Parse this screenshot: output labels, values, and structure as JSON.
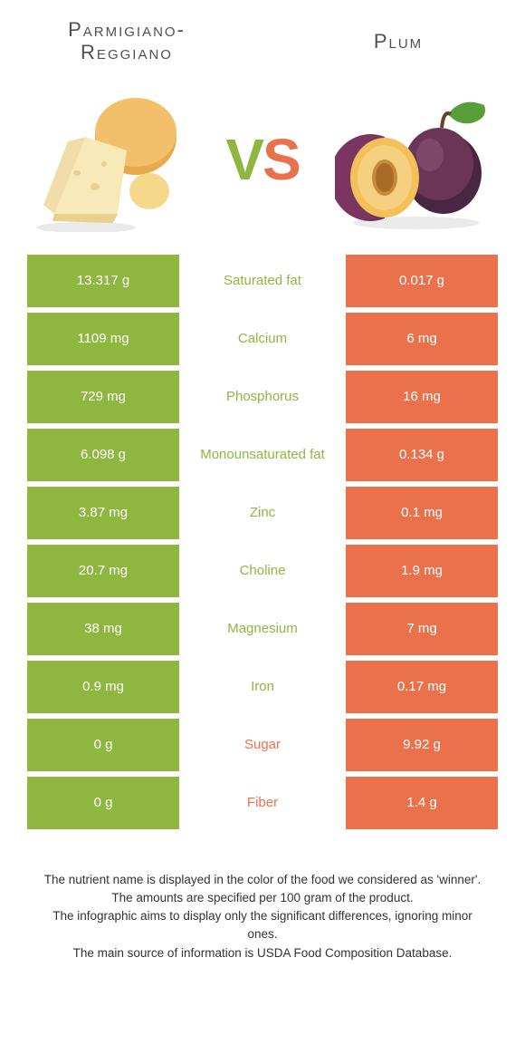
{
  "colors": {
    "green": "#8fb63f",
    "orange": "#e9724d",
    "text": "#4a4a4a",
    "bg": "#ffffff"
  },
  "left": {
    "title": "Parmigiano-Reggiano"
  },
  "right": {
    "title": "Plum"
  },
  "vs": {
    "v": "V",
    "s": "S"
  },
  "rows": [
    {
      "left": "13.317 g",
      "label": "Saturated fat",
      "right": "0.017 g",
      "winner": "left"
    },
    {
      "left": "1109 mg",
      "label": "Calcium",
      "right": "6 mg",
      "winner": "left"
    },
    {
      "left": "729 mg",
      "label": "Phosphorus",
      "right": "16 mg",
      "winner": "left"
    },
    {
      "left": "6.098 g",
      "label": "Monounsaturated fat",
      "right": "0.134 g",
      "winner": "left"
    },
    {
      "left": "3.87 mg",
      "label": "Zinc",
      "right": "0.1 mg",
      "winner": "left"
    },
    {
      "left": "20.7 mg",
      "label": "Choline",
      "right": "1.9 mg",
      "winner": "left"
    },
    {
      "left": "38 mg",
      "label": "Magnesium",
      "right": "7 mg",
      "winner": "left"
    },
    {
      "left": "0.9 mg",
      "label": "Iron",
      "right": "0.17 mg",
      "winner": "left"
    },
    {
      "left": "0 g",
      "label": "Sugar",
      "right": "9.92 g",
      "winner": "right"
    },
    {
      "left": "0 g",
      "label": "Fiber",
      "right": "1.4 g",
      "winner": "right"
    }
  ],
  "footer": {
    "l1": "The nutrient name is displayed in the color of the food we considered as 'winner'.",
    "l2": "The amounts are specified per 100 gram of the product.",
    "l3": "The infographic aims to display only the significant differences, ignoring minor ones.",
    "l4": "The main source of information is USDA Food Composition Database."
  }
}
